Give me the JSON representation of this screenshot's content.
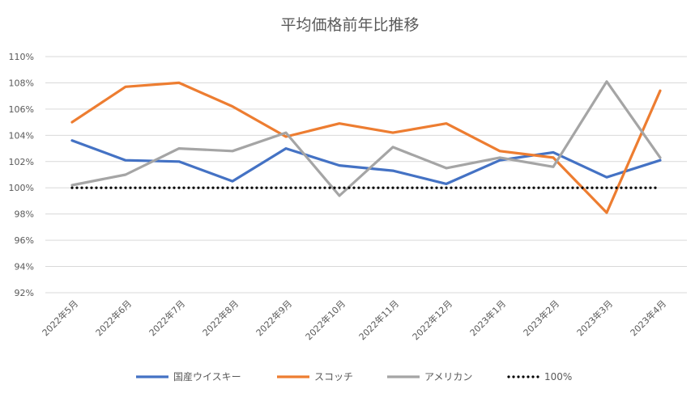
{
  "chart_data": {
    "type": "line",
    "title": "平均価格前年比推移",
    "xlabel": "",
    "ylabel": "",
    "categories": [
      "2022年5月",
      "2022年6月",
      "2022年7月",
      "2022年8月",
      "2022年9月",
      "2022年10月",
      "2022年11月",
      "2022年12月",
      "2023年1月",
      "2023年2月",
      "2023年3月",
      "2023年4月"
    ],
    "ylim": [
      92,
      110
    ],
    "yticks": [
      92,
      94,
      96,
      98,
      100,
      102,
      104,
      106,
      108,
      110
    ],
    "ytick_labels": [
      "92%",
      "94%",
      "96%",
      "98%",
      "100%",
      "102%",
      "104%",
      "106%",
      "108%",
      "110%"
    ],
    "grid": true,
    "legend_position": "bottom",
    "series": [
      {
        "name": "国産ウイスキー",
        "color": "#4472C4",
        "style": "solid",
        "values": [
          103.6,
          102.1,
          102.0,
          100.5,
          103.0,
          101.7,
          101.3,
          100.3,
          102.1,
          102.7,
          100.8,
          102.1
        ]
      },
      {
        "name": "スコッチ",
        "color": "#ED7D31",
        "style": "solid",
        "values": [
          105.0,
          107.7,
          108.0,
          106.2,
          103.9,
          104.9,
          104.2,
          104.9,
          102.8,
          102.3,
          98.1,
          107.4
        ]
      },
      {
        "name": "アメリカン",
        "color": "#A5A5A5",
        "style": "solid",
        "values": [
          100.2,
          101.0,
          103.0,
          102.8,
          104.2,
          99.4,
          103.1,
          101.5,
          102.3,
          101.6,
          108.1,
          102.3
        ]
      },
      {
        "name": "100%",
        "color": "#000000",
        "style": "dotted",
        "values": [
          100,
          100,
          100,
          100,
          100,
          100,
          100,
          100,
          100,
          100,
          100,
          100
        ]
      }
    ]
  }
}
